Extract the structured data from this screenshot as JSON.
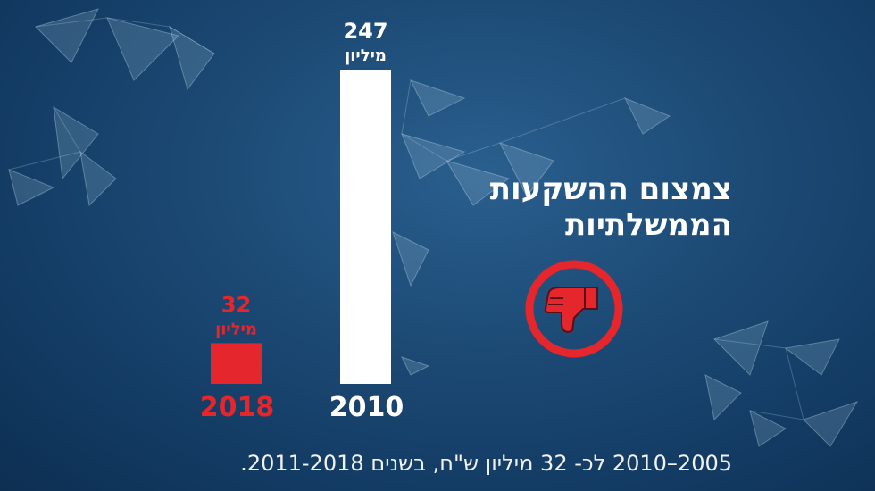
{
  "headline": {
    "line1": "צמצום ההשקעות",
    "line2": "הממשלתיות"
  },
  "caption": "2005–2010 לכ- 32 מיליון ש\"ח, בשנים 2011-2018.",
  "icon": "thumbs-down-icon",
  "colors": {
    "accent_red": "#e5262d",
    "bar_white": "#ffffff",
    "background": "#1c4a75"
  },
  "chart_data": {
    "type": "bar",
    "categories": [
      "2018",
      "2010"
    ],
    "values": [
      32,
      247
    ],
    "value_labels": [
      "32",
      "247"
    ],
    "unit_label": "מיליון",
    "bar_colors": [
      "#e5262d",
      "#ffffff"
    ],
    "ylim": [
      0,
      247
    ],
    "grid": false,
    "legend": "none"
  }
}
